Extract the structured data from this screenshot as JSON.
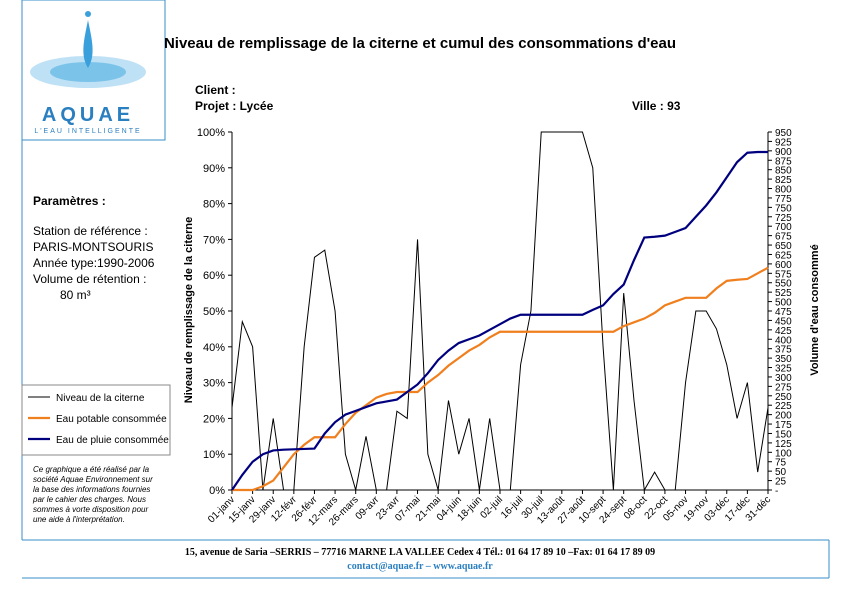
{
  "header": {
    "brand": "AQUAE",
    "tagline": "L'EAU INTELLIGENTE",
    "client": "Client :",
    "projet": "Projet : Lycée",
    "ville": "Ville :  93"
  },
  "parameters": {
    "heading": "Paramètres :",
    "lines": [
      "Station de référence :",
      "PARIS-MONTSOURIS",
      "Année type:1990-2006",
      "Volume de rétention :",
      "80 m³"
    ]
  },
  "note": [
    "Ce graphique a été réalisé par la",
    "société Aquae Environnement sur",
    "la base des informations fournies",
    "par le cahier des charges. Nous",
    "sommes à vorte disposition pour",
    "une aide à l'interprétation."
  ],
  "footer": {
    "address": "15, avenue de Saria –SERRIS – 77716 MARNE LA VALLEE Cedex 4  Tél.: 01 64 17 89 10 –Fax: 01 64 17 89 09",
    "contact": "contact@aquae.fr – www.aquae.fr"
  },
  "chart_data": {
    "type": "line",
    "title": "Niveau de remplissage de la citerne et cumul des consommations d'eau",
    "ylabel": "Niveau de remplissage de la citerne",
    "y2label": "Volume d'eau consommé",
    "categories": [
      "01-janv",
      null,
      "15-janv",
      null,
      "29-janv",
      null,
      "12-févr",
      null,
      "26-févr",
      null,
      "12-mars",
      null,
      "26-mars",
      null,
      "09-avr",
      null,
      "23-avr",
      null,
      "07-mai",
      null,
      "21-mai",
      null,
      "04-juin",
      null,
      "18-juin",
      null,
      "02-juil",
      null,
      "16-juil",
      null,
      "30-juil",
      null,
      "13-août",
      null,
      "27-août",
      null,
      "10-sept",
      null,
      "24-sept",
      null,
      "08-oct",
      null,
      "22-oct",
      null,
      "05-nov",
      null,
      "19-nov",
      null,
      "03-déc",
      null,
      "17-déc",
      null,
      "31-déc"
    ],
    "ylim": [
      0,
      100
    ],
    "yticks": [
      {
        "value": 0,
        "label": "0%"
      },
      {
        "value": 10,
        "label": "10%"
      },
      {
        "value": 20,
        "label": "20%"
      },
      {
        "value": 30,
        "label": "30%"
      },
      {
        "value": 40,
        "label": "40%"
      },
      {
        "value": 50,
        "label": "50%"
      },
      {
        "value": 60,
        "label": "60%"
      },
      {
        "value": 70,
        "label": "70%"
      },
      {
        "value": 80,
        "label": "80%"
      },
      {
        "value": 90,
        "label": "90%"
      },
      {
        "value": 100,
        "label": "100%"
      }
    ],
    "y2lim": [
      0,
      950
    ],
    "y2ticks": [
      {
        "value": 0,
        "label": "-"
      },
      25,
      50,
      75,
      100,
      125,
      150,
      175,
      200,
      225,
      250,
      275,
      300,
      325,
      350,
      375,
      400,
      425,
      450,
      475,
      500,
      525,
      550,
      575,
      600,
      625,
      650,
      675,
      700,
      725,
      750,
      775,
      800,
      825,
      850,
      875,
      900,
      925,
      950
    ],
    "series": [
      {
        "name": "Niveau de la citerne",
        "color": "#000000",
        "values": [
          23,
          47,
          40,
          0,
          20,
          0,
          0,
          40,
          65,
          67,
          50,
          10,
          0,
          15,
          0,
          0,
          22,
          20,
          70,
          10,
          0,
          25,
          10,
          20,
          0,
          20,
          0,
          0,
          35,
          50,
          100,
          100,
          100,
          100,
          100,
          90,
          40,
          0,
          55,
          25,
          0,
          5,
          0,
          0,
          30,
          50,
          50,
          45,
          35,
          20,
          30,
          5,
          23
        ]
      },
      {
        "name": "Eau potable consommée",
        "color": "#f07f1e",
        "axis": "y2",
        "values": [
          0,
          0,
          0,
          10,
          25,
          60,
          95,
          120,
          140,
          140,
          140,
          175,
          205,
          225,
          245,
          255,
          260,
          260,
          260,
          285,
          305,
          330,
          350,
          370,
          385,
          405,
          420,
          420,
          420,
          420,
          420,
          420,
          420,
          420,
          420,
          420,
          420,
          420,
          435,
          445,
          455,
          470,
          490,
          500,
          510,
          510,
          510,
          535,
          555,
          558,
          560,
          575,
          590
        ]
      },
      {
        "name": "Eau de pluie consommée",
        "color": "#00007f",
        "axis": "y2",
        "values": [
          0,
          40,
          75,
          95,
          105,
          107,
          108,
          109,
          110,
          150,
          180,
          200,
          210,
          220,
          230,
          235,
          240,
          260,
          280,
          310,
          345,
          370,
          390,
          400,
          410,
          425,
          440,
          455,
          465,
          465,
          465,
          465,
          465,
          465,
          465,
          478,
          490,
          520,
          545,
          610,
          670,
          672,
          675,
          685,
          695,
          725,
          755,
          790,
          830,
          870,
          895,
          897,
          897
        ]
      }
    ]
  }
}
